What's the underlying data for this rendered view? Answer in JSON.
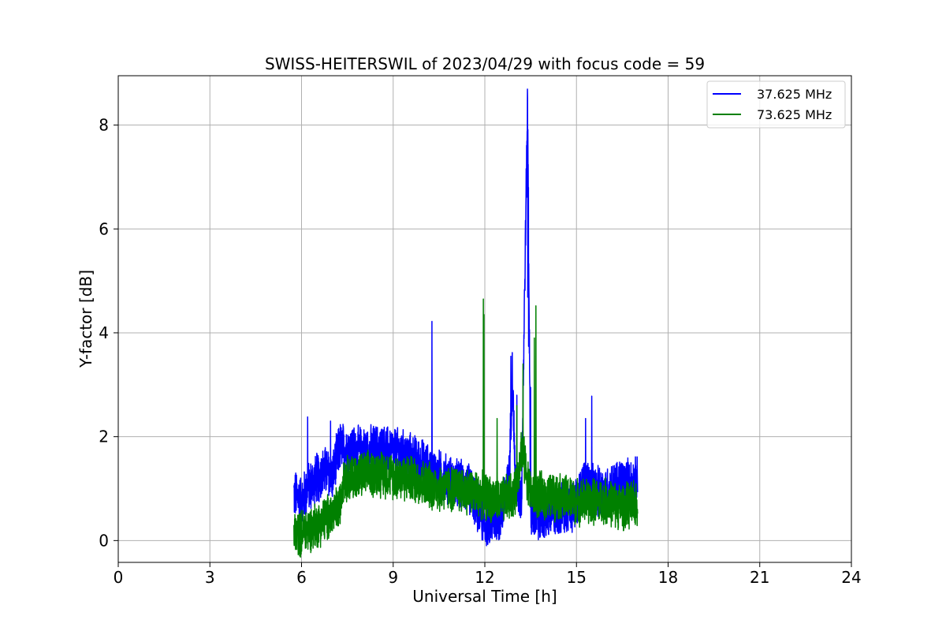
{
  "chart_data": {
    "type": "line",
    "title": "SWISS-HEITERSWIL of 2023/04/29 with focus code = 59",
    "xlabel": "Universal Time [h]",
    "ylabel": "Y-factor [dB]",
    "xlim": [
      0,
      24
    ],
    "ylim": [
      -0.42,
      8.95
    ],
    "xticks": [
      0,
      3,
      6,
      9,
      12,
      15,
      18,
      21,
      24
    ],
    "yticks": [
      0,
      2,
      4,
      6,
      8
    ],
    "grid": true,
    "legend": "top-right",
    "series": [
      {
        "name": "37.625 MHz",
        "color": "#0000ff",
        "x": [
          5.75,
          6.0,
          6.2,
          6.5,
          6.8,
          7.0,
          7.25,
          7.5,
          8.0,
          8.5,
          9.0,
          9.5,
          10.0,
          10.25,
          10.5,
          11.0,
          11.5,
          12.0,
          12.5,
          12.8,
          12.9,
          13.0,
          13.2,
          13.4,
          13.5,
          13.8,
          14.0,
          14.5,
          15.0,
          15.3,
          15.5,
          16.0,
          16.5,
          17.0
        ],
        "values": [
          0.9,
          0.75,
          1.0,
          1.2,
          1.35,
          1.2,
          1.8,
          1.75,
          1.7,
          1.75,
          1.7,
          1.6,
          1.45,
          1.3,
          1.25,
          1.1,
          1.0,
          0.35,
          0.45,
          1.2,
          3.3,
          1.1,
          0.8,
          8.5,
          0.5,
          0.45,
          0.5,
          0.6,
          0.7,
          1.2,
          0.95,
          0.95,
          1.1,
          1.1
        ],
        "spikes": [
          {
            "x": 6.2,
            "y": 2.38
          },
          {
            "x": 6.95,
            "y": 2.3
          },
          {
            "x": 10.27,
            "y": 4.22
          },
          {
            "x": 12.85,
            "y": 3.55
          },
          {
            "x": 13.05,
            "y": 2.8
          },
          {
            "x": 13.4,
            "y": 8.52
          },
          {
            "x": 13.43,
            "y": 6.8
          },
          {
            "x": 13.5,
            "y": 2.95
          },
          {
            "x": 15.3,
            "y": 2.35
          },
          {
            "x": 15.5,
            "y": 2.78
          }
        ]
      },
      {
        "name": "73.625 MHz",
        "color": "#008000",
        "x": [
          5.75,
          6.0,
          6.5,
          7.0,
          7.25,
          7.35,
          8.0,
          8.5,
          9.0,
          9.5,
          10.0,
          10.5,
          11.0,
          11.5,
          12.0,
          12.5,
          13.0,
          13.2,
          13.5,
          14.0,
          14.5,
          15.0,
          15.5,
          16.0,
          16.5,
          17.0
        ],
        "values": [
          0.12,
          0.15,
          0.3,
          0.5,
          0.65,
          1.2,
          1.25,
          1.3,
          1.25,
          1.2,
          1.1,
          1.0,
          1.0,
          0.95,
          0.85,
          0.75,
          0.9,
          1.8,
          0.9,
          0.85,
          0.85,
          0.75,
          0.75,
          0.75,
          0.65,
          0.7
        ],
        "spikes": [
          {
            "x": 11.95,
            "y": 4.65
          },
          {
            "x": 11.97,
            "y": 4.35
          },
          {
            "x": 12.4,
            "y": 2.35
          },
          {
            "x": 13.05,
            "y": 2.6
          },
          {
            "x": 13.25,
            "y": 3.4
          },
          {
            "x": 13.67,
            "y": 4.52
          },
          {
            "x": 13.62,
            "y": 3.9
          }
        ]
      }
    ]
  }
}
